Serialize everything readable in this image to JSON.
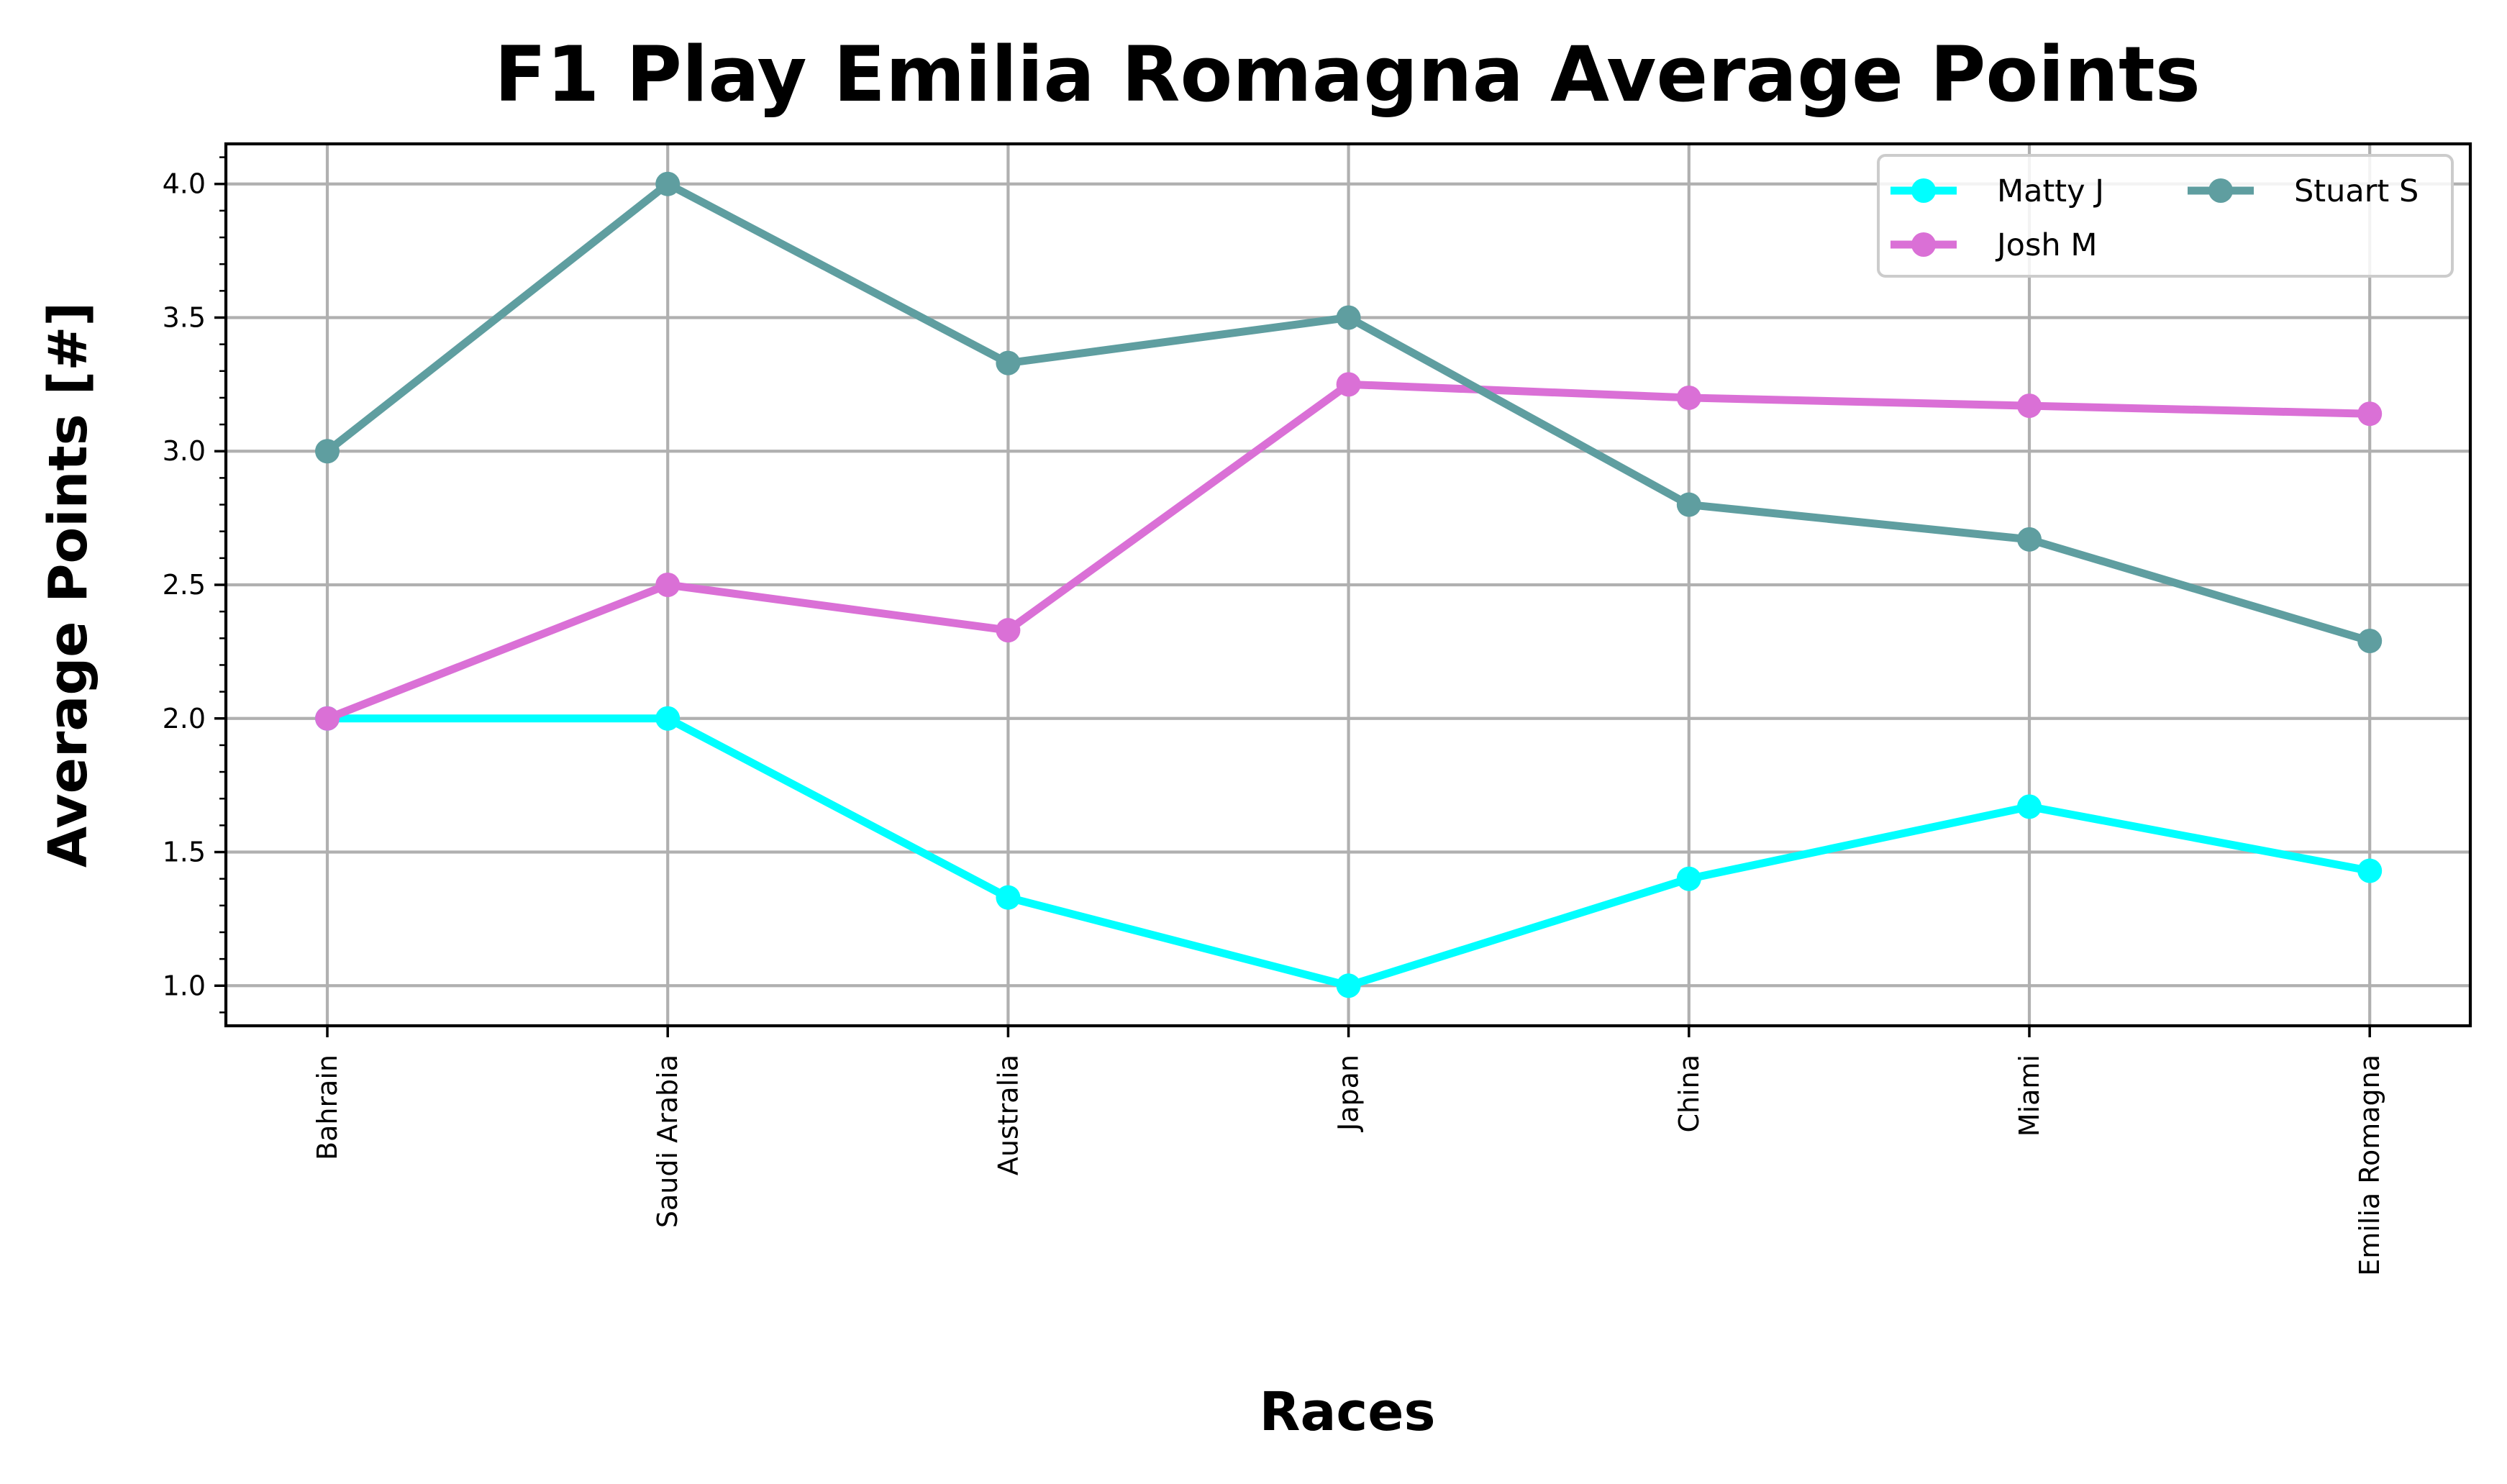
{
  "chart_data": {
    "type": "line",
    "title": "F1 Play Emilia Romagna Average Points",
    "xlabel": "Races",
    "ylabel": "Average Points [#]",
    "categories": [
      "Bahrain",
      "Saudi Arabia",
      "Australia",
      "Japan",
      "China",
      "Miami",
      "Emilia Romagna"
    ],
    "y_ticks": [
      "1.0",
      "1.5",
      "2.0",
      "2.5",
      "3.0",
      "3.5",
      "4.0"
    ],
    "ylim": [
      0.85,
      4.15
    ],
    "grid": true,
    "legend_position": "top-right",
    "series": [
      {
        "name": "Matty J",
        "color": "#00ffff",
        "values": [
          2.0,
          2.0,
          1.33,
          1.0,
          1.4,
          1.67,
          1.43
        ]
      },
      {
        "name": "Josh M",
        "color": "#da70d6",
        "values": [
          2.0,
          2.5,
          2.33,
          3.25,
          3.2,
          3.17,
          3.14
        ]
      },
      {
        "name": "Stuart S",
        "color": "#5f9ea0",
        "values": [
          3.0,
          4.0,
          3.33,
          3.5,
          2.8,
          2.67,
          2.29
        ]
      }
    ]
  }
}
